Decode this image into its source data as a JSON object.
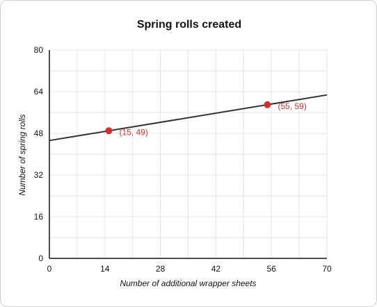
{
  "chart_data": {
    "type": "line",
    "title": "Spring rolls created",
    "xlabel": "Number of additional wrapper sheets",
    "ylabel": "Number of spring rolls",
    "xlim": [
      0,
      70
    ],
    "ylim": [
      0,
      80
    ],
    "x_ticks": [
      0,
      14,
      28,
      42,
      56,
      70
    ],
    "y_ticks": [
      0,
      16,
      32,
      48,
      64,
      80
    ],
    "grid": true,
    "line": {
      "x": [
        0,
        70
      ],
      "y": [
        45.25,
        62.75
      ]
    },
    "points": [
      {
        "x": 15,
        "y": 49,
        "label": "(15, 49)"
      },
      {
        "x": 55,
        "y": 59,
        "label": "(55, 59)"
      }
    ],
    "colors": {
      "line": "#333333",
      "point": "#d32f2f",
      "grid": "#e6e6e6"
    }
  }
}
